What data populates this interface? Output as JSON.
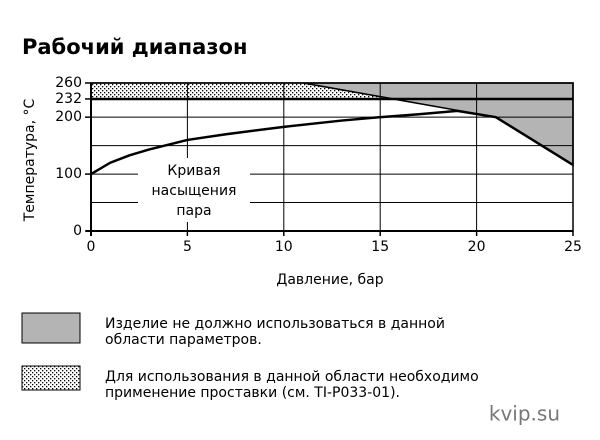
{
  "chart_data": {
    "type": "line",
    "title": "Рабочий диапазон",
    "xlabel": "Давление, бар",
    "ylabel": "Температура, °C",
    "xlim": [
      0,
      25
    ],
    "xticks": [
      0,
      5,
      10,
      15,
      20,
      25
    ],
    "ylim": [
      0,
      260
    ],
    "yticks": [
      0,
      100,
      200,
      232,
      260
    ],
    "y_minor_grid": [
      50,
      150
    ],
    "grid": true,
    "annotation": [
      "Кривая",
      "насыщения",
      "пара"
    ],
    "series": [
      {
        "color": "#000000",
        "x": [
          0,
          1,
          2,
          3,
          5,
          7,
          10,
          13,
          15,
          17,
          19,
          21,
          25
        ],
        "values": [
          100,
          120,
          133,
          143,
          160,
          170,
          183,
          194,
          200,
          205,
          211,
          200,
          116
        ]
      }
    ],
    "regions": [
      {
        "label": [
          "Изделие не должно использоваться в данной",
          "области параметров."
        ],
        "color": "#b4b4b4",
        "pattern": "solid",
        "x": [
          11,
          25,
          25,
          21
        ],
        "y": [
          260,
          260,
          116,
          200
        ]
      },
      {
        "label": [
          "Для использования в данной области необходимо",
          "применение проставки (см. TI-P033-01)."
        ],
        "color": "#000000",
        "pattern": "dots",
        "x": [
          0,
          0,
          11,
          15.67
        ],
        "y": [
          232,
          260,
          260,
          232
        ]
      }
    ]
  },
  "watermark": "kvip.su"
}
